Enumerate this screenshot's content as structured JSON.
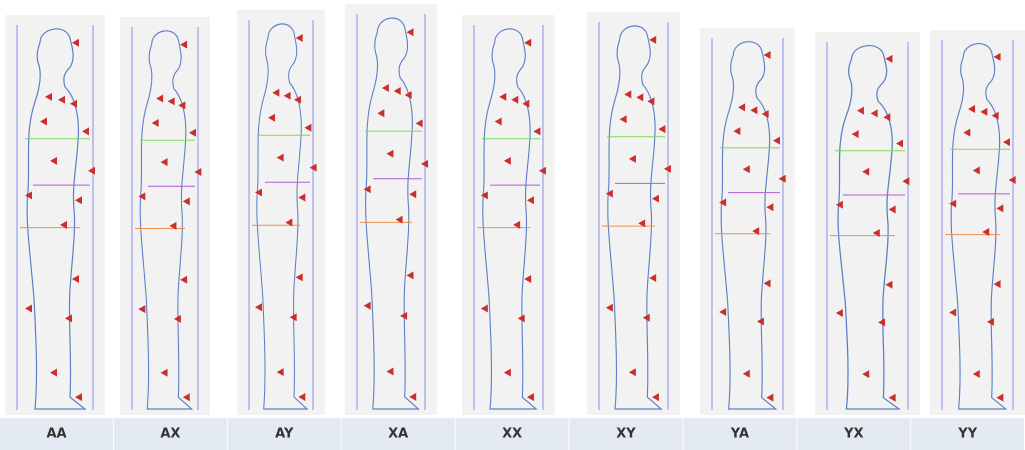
{
  "panels": [
    {
      "label": "AA"
    },
    {
      "label": "AX"
    },
    {
      "label": "AY"
    },
    {
      "label": "XA"
    },
    {
      "label": "XX"
    },
    {
      "label": "XY"
    },
    {
      "label": "YA"
    },
    {
      "label": "YX"
    },
    {
      "label": "YY"
    }
  ]
}
